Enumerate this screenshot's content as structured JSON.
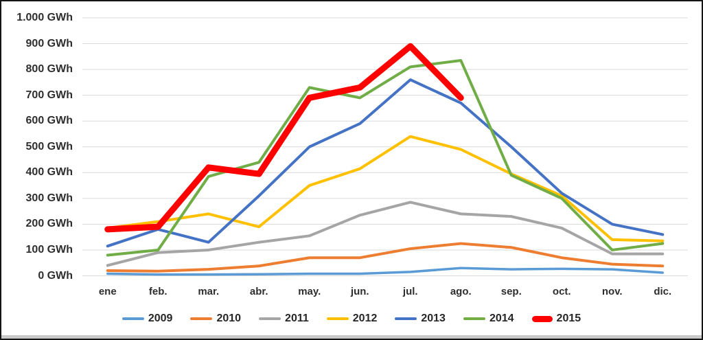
{
  "chart_data": {
    "type": "line",
    "title": "",
    "unit": "GWh",
    "categories": [
      "ene",
      "feb.",
      "mar.",
      "abr.",
      "may.",
      "jun.",
      "jul.",
      "ago.",
      "sep.",
      "oct.",
      "nov.",
      "dic."
    ],
    "y_axis": {
      "min": 0,
      "max": 1000,
      "step": 100,
      "tick_labels": [
        "0 GWh",
        "100 GWh",
        "200 GWh",
        "300 GWh",
        "400 GWh",
        "500 GWh",
        "600 GWh",
        "700 GWh",
        "800 GWh",
        "900 GWh",
        "1.000 GWh"
      ]
    },
    "grid": "horizontal",
    "gridline_color": "#d9d9d9",
    "legend_position": "bottom",
    "series": [
      {
        "name": "2009",
        "color": "#5B9BD5",
        "width": 3.5,
        "values": [
          8,
          5,
          5,
          6,
          8,
          8,
          15,
          30,
          25,
          27,
          25,
          12
        ]
      },
      {
        "name": "2010",
        "color": "#ED7D31",
        "width": 4,
        "values": [
          20,
          18,
          25,
          38,
          70,
          70,
          105,
          125,
          110,
          70,
          45,
          38
        ]
      },
      {
        "name": "2011",
        "color": "#A5A5A5",
        "width": 4,
        "values": [
          40,
          90,
          100,
          130,
          155,
          235,
          285,
          240,
          230,
          185,
          85,
          85
        ]
      },
      {
        "name": "2012",
        "color": "#FFC000",
        "width": 4,
        "values": [
          185,
          210,
          240,
          190,
          350,
          415,
          540,
          490,
          395,
          310,
          140,
          135
        ]
      },
      {
        "name": "2013",
        "color": "#4472C4",
        "width": 4,
        "values": [
          115,
          180,
          130,
          310,
          500,
          590,
          760,
          670,
          500,
          320,
          200,
          160
        ]
      },
      {
        "name": "2014",
        "color": "#70AD47",
        "width": 4,
        "values": [
          80,
          100,
          385,
          440,
          730,
          690,
          810,
          835,
          390,
          300,
          100,
          125
        ]
      },
      {
        "name": "2015",
        "color": "#FF0000",
        "width": 9,
        "values": [
          180,
          190,
          420,
          395,
          690,
          730,
          890,
          690
        ]
      }
    ]
  },
  "frame": {
    "border_color": "#141414",
    "bottom_strip_color": "#c9c9c9"
  }
}
